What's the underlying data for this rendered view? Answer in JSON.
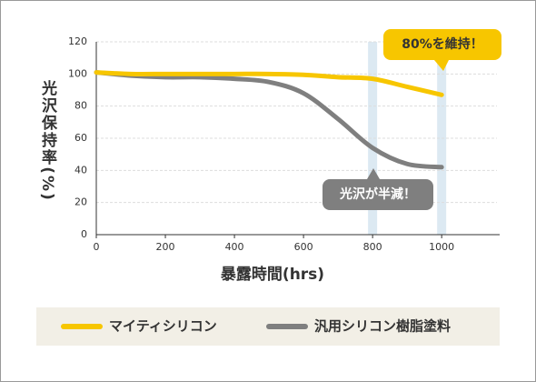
{
  "chart_data": {
    "type": "line",
    "x_label": "暴露時間(hrs)",
    "y_label": "光沢保持率(%)",
    "x": [
      0,
      100,
      200,
      300,
      400,
      500,
      600,
      700,
      800,
      900,
      1000
    ],
    "series": [
      {
        "name": "マイティシリコン",
        "color": "#f7c600",
        "values": [
          101,
          100,
          100,
          100,
          100,
          100,
          99.5,
          98,
          97,
          92,
          87
        ]
      },
      {
        "name": "汎用シリコン樹脂塗料",
        "color": "#7f7f7f",
        "values": [
          101,
          99,
          98,
          98,
          97,
          95,
          88,
          72,
          54,
          44,
          42
        ]
      }
    ],
    "xlim": [
      0,
      1160
    ],
    "xticks": [
      0,
      200,
      400,
      600,
      800,
      1000
    ],
    "ylim": [
      0,
      120
    ],
    "yticks": [
      0,
      20,
      40,
      60,
      80,
      100,
      120
    ],
    "grid": true,
    "annotations": [
      "80%を維持！",
      "光沢が半減！"
    ]
  }
}
